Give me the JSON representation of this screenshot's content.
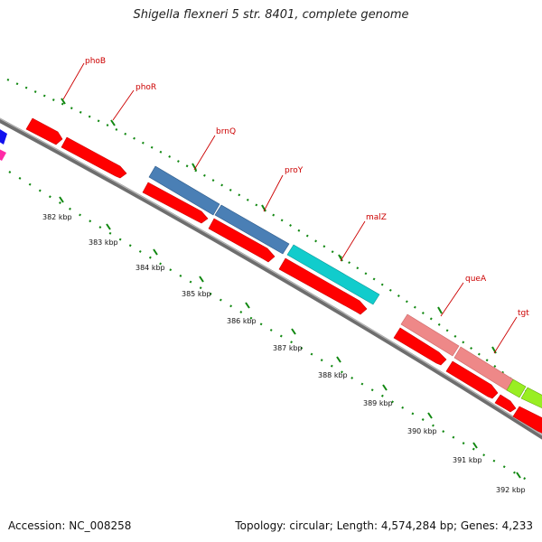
{
  "title": "Shigella flexneri 5 str. 8401, complete genome",
  "footer": {
    "accession": "Accession: NC_008258",
    "info": "Topology: circular; Length: 4,574,284 bp; Genes: 4,233"
  },
  "gene_labels": [
    "phoB",
    "phoR",
    "brnQ",
    "proY",
    "malZ",
    "queA",
    "tgt"
  ],
  "kbp_labels": [
    "382 kbp",
    "383 kbp",
    "384 kbp",
    "385 kbp",
    "386 kbp",
    "387 kbp",
    "388 kbp",
    "389 kbp",
    "390 kbp",
    "391 kbp",
    "392 kbp"
  ],
  "colors": {
    "cds_red": "#ff0000",
    "steelblue": "#4a7fb5",
    "cyan": "#11cccc",
    "salmon": "#ee8888",
    "lime": "#99ee22",
    "blue": "#1111ee",
    "magenta": "#ff2aa6",
    "backbone": "#808080",
    "tick_green": "#118811",
    "leader_red": "#cc0000"
  }
}
